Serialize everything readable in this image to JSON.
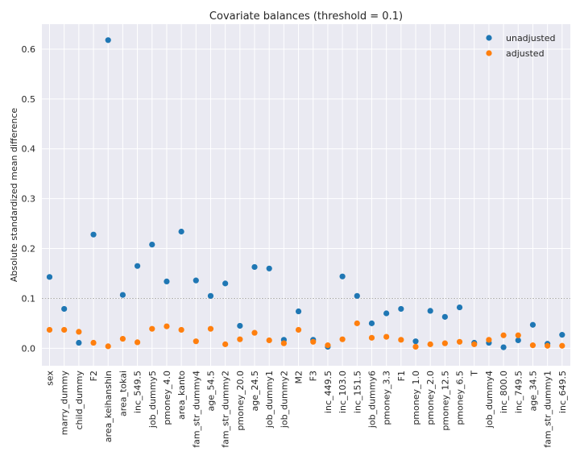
{
  "chart_data": {
    "type": "scatter",
    "title": "Covariate balances (threshold = 0.1)",
    "xlabel": "",
    "ylabel": "Absolute standardized mean difference",
    "ylim": [
      -0.035,
      0.65
    ],
    "yticks": [
      0.0,
      0.1,
      0.2,
      0.3,
      0.4,
      0.5,
      0.6
    ],
    "threshold": 0.1,
    "grid": true,
    "legend_position": "top-right",
    "colors": {
      "unadjusted": "#1f77b4",
      "adjusted": "#ff7f0e",
      "background": "#eaeaf2",
      "grid": "#ffffff",
      "threshold": "#aaaaaa"
    },
    "categories": [
      "sex",
      "marry_dummy",
      "child_dummy",
      "F2",
      "area_keihanshin",
      "area_tokai",
      "inc_549.5",
      "job_dummy5",
      "pmoney_4.0",
      "area_kanto",
      "fam_str_dummy4",
      "age_54.5",
      "fam_str_dummy2",
      "pmoney_20.0",
      "age_24.5",
      "job_dummy1",
      "job_dummy2",
      "M2",
      "F3",
      "inc_449.5",
      "inc_103.0",
      "inc_151.5",
      "job_dummy6",
      "pmoney_3.3",
      "F1",
      "pmoney_1.0",
      "pmoney_2.0",
      "pmoney_12.5",
      "pmoney_6.5",
      "T",
      "job_dummy4",
      "inc_800.0",
      "inc_749.5",
      "age_34.5",
      "fam_str_dummy1",
      "inc_649.5"
    ],
    "series": [
      {
        "name": "unadjusted",
        "values": [
          0.143,
          0.079,
          0.011,
          0.228,
          0.618,
          0.107,
          0.165,
          0.208,
          0.134,
          0.234,
          0.136,
          0.105,
          0.13,
          0.045,
          0.163,
          0.16,
          0.017,
          0.074,
          0.017,
          0.003,
          0.144,
          0.105,
          0.05,
          0.07,
          0.079,
          0.014,
          0.075,
          0.063,
          0.082,
          0.011,
          0.011,
          0.002,
          0.016,
          0.047,
          0.009,
          0.027
        ]
      },
      {
        "name": "adjusted",
        "values": [
          0.037,
          0.037,
          0.033,
          0.011,
          0.004,
          0.019,
          0.012,
          0.039,
          0.044,
          0.037,
          0.014,
          0.039,
          0.008,
          0.018,
          0.031,
          0.016,
          0.01,
          0.037,
          0.013,
          0.006,
          0.018,
          0.05,
          0.021,
          0.023,
          0.017,
          0.003,
          0.008,
          0.01,
          0.013,
          0.008,
          0.017,
          0.026,
          0.026,
          0.006,
          0.005,
          0.005
        ]
      }
    ]
  }
}
